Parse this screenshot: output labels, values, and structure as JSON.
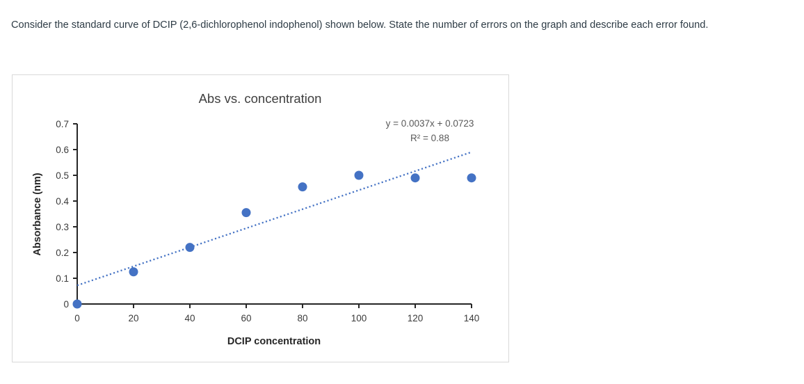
{
  "question": {
    "text": "Consider the standard curve of DCIP (2,6-dichlorophenol indophenol) shown below. State the number of errors on the graph and describe each error found."
  },
  "chart_data": {
    "type": "scatter",
    "title": "Abs vs. concentration",
    "xlabel": "DCIP concentration",
    "ylabel": "Absorbance (nm)",
    "x": [
      0,
      20,
      40,
      60,
      80,
      100,
      120,
      140
    ],
    "y": [
      0,
      0.125,
      0.22,
      0.355,
      0.455,
      0.5,
      0.49,
      0.49
    ],
    "xlim": [
      0,
      140
    ],
    "ylim": [
      0,
      0.7
    ],
    "x_ticks": [
      0,
      20,
      40,
      60,
      80,
      100,
      120,
      140
    ],
    "y_ticks": [
      0,
      0.1,
      0.2,
      0.3,
      0.4,
      0.5,
      0.6,
      0.7
    ],
    "x_tick_labels": [
      "0",
      "20",
      "40",
      "60",
      "80",
      "100",
      "120",
      "140"
    ],
    "y_tick_labels": [
      "0",
      "0.1",
      "0.2",
      "0.3",
      "0.4",
      "0.5",
      "0.6",
      "0.7"
    ],
    "grid": false,
    "legend": "none",
    "trendline": {
      "slope": 0.0037,
      "intercept": 0.0723,
      "x_start": 0,
      "x_end": 139.5,
      "style": "dotted",
      "equation_label": "y = 0.0037x + 0.0723",
      "r_squared_label": "R² = 0.88"
    },
    "colors": {
      "marker": "#4472c4",
      "trendline": "#4472c4",
      "title": "#404040",
      "equation_text": "#595959",
      "axis": "#262626",
      "tick_text": "#3a3a3a",
      "axis_title_text": "#262626"
    }
  }
}
